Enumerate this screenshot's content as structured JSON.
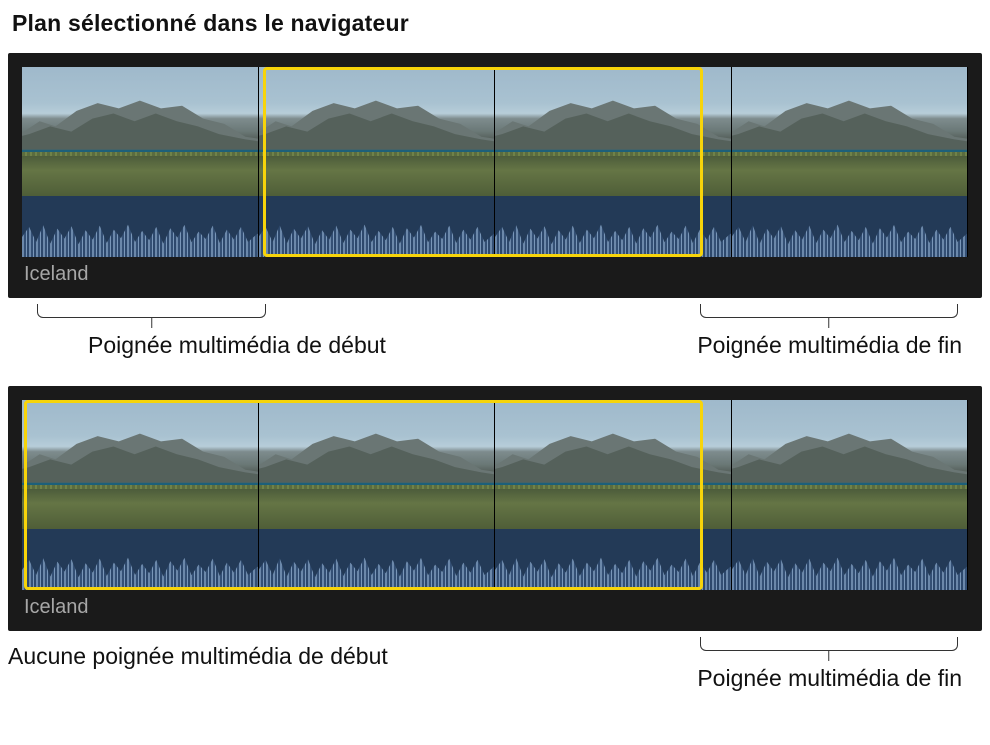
{
  "title": "Plan sélectionné dans le navigateur",
  "selection_color": "#f7d40a",
  "block_bg": "#1a1a1a",
  "waveform_bg": "#233a57",
  "thumb_sky": "#a9c2d1",
  "thumb_mountain": "#6a7876",
  "thumb_sea": "#1d607a",
  "thumb_grass": "#657545",
  "clip1": {
    "name": "Iceland",
    "frame_count": 4,
    "selection": {
      "left_pct": 25.5,
      "right_pct": 72.0
    },
    "callouts": {
      "start": {
        "label": "Poignée multimédia de début",
        "bracket_left_pct": 3.0,
        "bracket_right_pct": 26.5
      },
      "end": {
        "label": "Poignée multimédia de fin",
        "bracket_left_pct": 71.0,
        "bracket_right_pct": 97.5
      }
    }
  },
  "clip2": {
    "name": "Iceland",
    "frame_count": 4,
    "selection": {
      "left_pct": 0.2,
      "right_pct": 72.0
    },
    "callouts": {
      "start": {
        "label": "Aucune poignée multimédia de début",
        "has_bracket": false
      },
      "end": {
        "label": "Poignée multimédia de fin",
        "bracket_left_pct": 71.0,
        "bracket_right_pct": 97.5
      }
    }
  }
}
